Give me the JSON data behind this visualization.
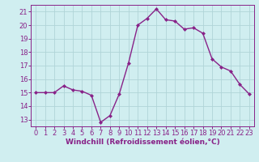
{
  "x": [
    0,
    1,
    2,
    3,
    4,
    5,
    6,
    7,
    8,
    9,
    10,
    11,
    12,
    13,
    14,
    15,
    16,
    17,
    18,
    19,
    20,
    21,
    22,
    23
  ],
  "y": [
    15.0,
    15.0,
    15.0,
    15.5,
    15.2,
    15.1,
    14.8,
    12.8,
    13.3,
    14.9,
    17.2,
    20.0,
    20.5,
    21.2,
    20.4,
    20.3,
    19.7,
    19.8,
    19.4,
    17.5,
    16.9,
    16.6,
    15.6,
    14.9
  ],
  "line_color": "#882288",
  "marker": "D",
  "markersize": 2,
  "linewidth": 1.0,
  "xlabel": "Windchill (Refroidissement éolien,°C)",
  "ylabel": "",
  "xlim": [
    -0.5,
    23.5
  ],
  "ylim": [
    12.5,
    21.5
  ],
  "yticks": [
    13,
    14,
    15,
    16,
    17,
    18,
    19,
    20,
    21
  ],
  "xticks": [
    0,
    1,
    2,
    3,
    4,
    5,
    6,
    7,
    8,
    9,
    10,
    11,
    12,
    13,
    14,
    15,
    16,
    17,
    18,
    19,
    20,
    21,
    22,
    23
  ],
  "bg_color": "#d0eef0",
  "grid_color": "#b0d4d8",
  "tick_color": "#882288",
  "label_color": "#882288",
  "xlabel_fontsize": 6.5,
  "tick_fontsize": 6.0
}
